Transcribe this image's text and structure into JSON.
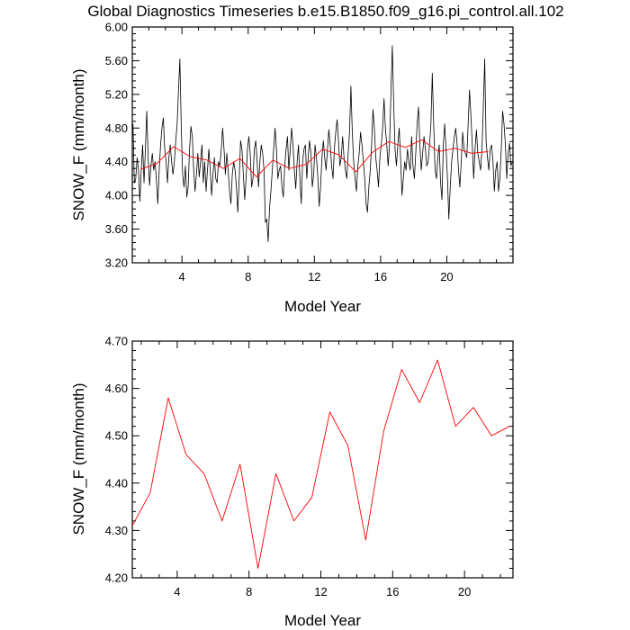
{
  "figure_title": "Global Diagnostics Timeseries b.e15.B1850.f09_g16.pi_control.all.102",
  "colors": {
    "monthly_line": "#000000",
    "annual_line": "#ff0000",
    "axes": "#000000"
  },
  "chart_data": [
    {
      "type": "line",
      "panel": "monthly-and-annual",
      "title": "Global Diagnostics Timeseries b.e15.B1850.f09_g16.pi_control.all.102",
      "xlabel": "Model Year",
      "ylabel": "SNOW_F (mm/month)",
      "xlim": [
        1,
        24
      ],
      "ylim": [
        3.2,
        6.0
      ],
      "xticks": [
        4,
        8,
        12,
        16,
        20
      ],
      "xtick_labels": [
        "4",
        "8",
        "12",
        "16",
        "20"
      ],
      "yticks": [
        3.2,
        3.6,
        4.0,
        4.4,
        4.8,
        5.2,
        5.6,
        6.0
      ],
      "ytick_labels": [
        "3.20",
        "3.60",
        "4.00",
        "4.40",
        "4.80",
        "5.20",
        "5.60",
        "6.00"
      ],
      "series": [
        {
          "name": "monthly",
          "color": "#000000",
          "x_start": 1.0417,
          "x_step": 0.08333,
          "values": [
            4.85,
            4.15,
            4.2,
            4.45,
            4.3,
            3.93,
            4.3,
            4.6,
            4.15,
            4.55,
            5.0,
            4.45,
            4.12,
            4.35,
            4.5,
            4.3,
            4.4,
            4.18,
            3.9,
            4.3,
            4.6,
            4.8,
            4.92,
            4.55,
            4.4,
            4.15,
            4.45,
            4.6,
            4.4,
            4.25,
            4.4,
            4.65,
            4.85,
            5.25,
            5.62,
            4.8,
            4.25,
            4.1,
            4.35,
            3.98,
            4.1,
            4.55,
            4.82,
            4.7,
            4.3,
            4.05,
            4.25,
            4.5,
            4.22,
            4.4,
            4.6,
            4.15,
            4.4,
            4.05,
            4.3,
            4.55,
            4.3,
            4.0,
            4.25,
            4.45,
            4.2,
            4.15,
            4.4,
            4.35,
            4.55,
            4.8,
            4.55,
            4.25,
            4.5,
            4.3,
            4.05,
            3.9,
            4.25,
            4.4,
            4.3,
            4.1,
            3.8,
            4.2,
            4.65,
            4.55,
            4.25,
            3.95,
            4.2,
            4.55,
            4.7,
            4.5,
            4.1,
            4.2,
            4.55,
            4.65,
            4.4,
            4.1,
            4.4,
            4.6,
            4.5,
            4.3,
            3.68,
            3.72,
            3.45,
            3.85,
            4.05,
            4.3,
            4.55,
            4.8,
            4.55,
            4.2,
            4.3,
            4.35,
            4.1,
            3.98,
            4.35,
            4.55,
            4.7,
            4.3,
            4.55,
            4.8,
            4.6,
            4.3,
            4.08,
            4.4,
            4.6,
            4.2,
            3.9,
            4.4,
            4.55,
            4.6,
            4.2,
            4.45,
            4.65,
            4.5,
            4.1,
            4.25,
            4.6,
            4.45,
            4.22,
            3.87,
            4.1,
            4.45,
            4.65,
            4.45,
            4.3,
            4.55,
            4.78,
            4.6,
            4.35,
            4.2,
            4.55,
            4.75,
            4.9,
            4.65,
            4.35,
            4.45,
            4.7,
            4.45,
            4.3,
            4.2,
            4.5,
            4.75,
            5.3,
            4.75,
            4.4,
            4.2,
            4.05,
            4.35,
            4.5,
            4.75,
            4.6,
            4.4,
            4.2,
            3.9,
            3.8,
            4.1,
            4.3,
            4.6,
            5.02,
            4.8,
            4.45,
            4.3,
            4.1,
            4.45,
            4.6,
            4.8,
            5.15,
            4.8,
            4.6,
            4.35,
            4.6,
            5.2,
            5.78,
            5.1,
            4.55,
            4.35,
            4.6,
            4.8,
            4.45,
            4.0,
            4.2,
            4.4,
            4.3,
            4.55,
            4.4,
            4.3,
            4.7,
            4.35,
            4.2,
            4.5,
            4.85,
            5.05,
            4.6,
            4.3,
            4.5,
            4.7,
            4.55,
            4.35,
            4.4,
            4.6,
            4.85,
            5.45,
            4.85,
            4.3,
            4.2,
            4.45,
            4.6,
            4.15,
            3.95,
            4.6,
            4.85,
            4.55,
            4.2,
            3.72,
            4.1,
            4.4,
            4.55,
            4.7,
            4.8,
            4.6,
            4.3,
            4.1,
            4.4,
            4.75,
            4.55,
            4.5,
            4.45,
            4.85,
            5.25,
            4.95,
            4.6,
            4.2,
            4.55,
            4.78,
            4.5,
            4.4,
            4.3,
            4.55,
            5.05,
            5.62,
            4.65,
            4.45,
            4.3,
            4.55,
            4.6,
            4.4,
            4.05,
            4.3,
            4.4,
            4.05,
            4.2,
            4.55,
            5.0,
            4.85,
            4.6,
            4.2,
            4.5,
            4.62,
            4.35,
            4.4
          ]
        },
        {
          "name": "annual",
          "color": "#ff0000",
          "x": [
            1.5,
            2.5,
            3.5,
            4.5,
            5.5,
            6.5,
            7.5,
            8.5,
            9.5,
            10.5,
            11.5,
            12.5,
            13.5,
            14.5,
            15.5,
            16.5,
            17.5,
            18.5,
            19.5,
            20.5,
            21.5,
            22.5
          ],
          "values": [
            4.31,
            4.38,
            4.58,
            4.46,
            4.42,
            4.32,
            4.44,
            4.22,
            4.42,
            4.32,
            4.37,
            4.55,
            4.48,
            4.28,
            4.51,
            4.64,
            4.57,
            4.66,
            4.52,
            4.56,
            4.5,
            4.52
          ]
        }
      ]
    },
    {
      "type": "line",
      "panel": "annual",
      "title": "",
      "xlabel": "Model Year",
      "ylabel": "SNOW_F (mm/month)",
      "xlim": [
        1.5,
        22.7
      ],
      "ylim": [
        4.2,
        4.7
      ],
      "xticks": [
        4,
        8,
        12,
        16,
        20
      ],
      "xtick_labels": [
        "4",
        "8",
        "12",
        "16",
        "20"
      ],
      "yticks": [
        4.2,
        4.3,
        4.4,
        4.5,
        4.6,
        4.7
      ],
      "ytick_labels": [
        "4.20",
        "4.30",
        "4.40",
        "4.50",
        "4.60",
        "4.70"
      ],
      "series": [
        {
          "name": "annual",
          "color": "#ff0000",
          "x": [
            1.5,
            2.5,
            3.5,
            4.5,
            5.5,
            6.5,
            7.5,
            8.5,
            9.5,
            10.5,
            11.5,
            12.5,
            13.5,
            14.5,
            15.5,
            16.5,
            17.5,
            18.5,
            19.5,
            20.5,
            21.5,
            22.5
          ],
          "values": [
            4.31,
            4.38,
            4.58,
            4.46,
            4.42,
            4.32,
            4.44,
            4.22,
            4.42,
            4.32,
            4.37,
            4.55,
            4.48,
            4.28,
            4.51,
            4.64,
            4.57,
            4.66,
            4.52,
            4.56,
            4.5,
            4.52
          ]
        }
      ]
    }
  ]
}
